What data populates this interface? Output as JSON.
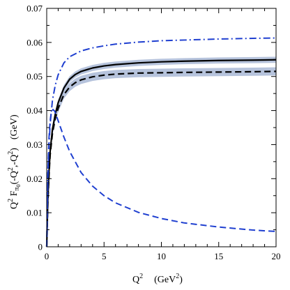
{
  "chart_data": {
    "type": "line",
    "xlim": [
      0,
      20
    ],
    "ylim": [
      0,
      0.07
    ],
    "x_ticks": [
      "0",
      "5",
      "10",
      "15",
      "20"
    ],
    "y_ticks": [
      "0",
      "0.01",
      "0.02",
      "0.03",
      "0.04",
      "0.05",
      "0.06",
      "0.07"
    ],
    "xlabel": {
      "base": "Q",
      "sup": "2",
      "unit_open": "(GeV",
      "unit_sup": "2",
      "unit_close": ")"
    },
    "ylabel": {
      "q": "Q",
      "q_sup": "2",
      "f": " F",
      "f_sub": "π",
      "f_sub2": "0",
      "args_a": "(-Q",
      "args_sup1": "2",
      "args_b": ",-Q",
      "args_sup2": "2",
      "args_c": ")",
      "unit": "(GeV)"
    },
    "grid": false,
    "legend": "none",
    "series": [
      {
        "style": "solid",
        "color": "#000000",
        "band": true,
        "band_color": "#a9b8d6",
        "x": [
          0,
          0.1,
          0.2,
          0.3,
          0.5,
          0.75,
          1,
          1.5,
          2,
          2.5,
          3,
          4,
          5,
          6,
          8,
          10,
          12,
          15,
          18,
          20
        ],
        "y": [
          0,
          0.014,
          0.022,
          0.028,
          0.0345,
          0.039,
          0.0423,
          0.0466,
          0.0492,
          0.0506,
          0.0515,
          0.0525,
          0.0531,
          0.0535,
          0.054,
          0.0543,
          0.0545,
          0.0547,
          0.0548,
          0.0549
        ],
        "band_halfwidth": 0.0009
      },
      {
        "style": "dashed",
        "color": "#000000",
        "band": true,
        "band_color": "#a9b8d6",
        "x": [
          0,
          0.1,
          0.2,
          0.3,
          0.5,
          0.75,
          1,
          1.5,
          2,
          2.5,
          3,
          4,
          5,
          6,
          8,
          10,
          12,
          15,
          18,
          20
        ],
        "y": [
          0,
          0.013,
          0.021,
          0.027,
          0.0333,
          0.0377,
          0.0407,
          0.0447,
          0.0469,
          0.0482,
          0.049,
          0.0499,
          0.0504,
          0.0507,
          0.051,
          0.0511,
          0.0512,
          0.0513,
          0.0514,
          0.0515
        ],
        "band_halfwidth": 0.0012
      },
      {
        "style": "dashdot",
        "color": "#1f3fd0",
        "band": false,
        "x": [
          0,
          0.1,
          0.2,
          0.3,
          0.5,
          0.75,
          1,
          1.5,
          2,
          3,
          4,
          5,
          6,
          8,
          10,
          12,
          15,
          18,
          20
        ],
        "y": [
          0,
          0.02,
          0.03,
          0.036,
          0.043,
          0.0475,
          0.0505,
          0.054,
          0.0558,
          0.0575,
          0.0584,
          0.059,
          0.0595,
          0.0601,
          0.0605,
          0.0607,
          0.061,
          0.0612,
          0.0613
        ]
      },
      {
        "style": "dashed",
        "color": "#1f3fd0",
        "band": false,
        "x": [
          0,
          0.1,
          0.2,
          0.3,
          0.4,
          0.55,
          0.7,
          1,
          1.5,
          2,
          3,
          4,
          5,
          6,
          8,
          10,
          12,
          15,
          18,
          20
        ],
        "y": [
          0,
          0.022,
          0.032,
          0.037,
          0.0395,
          0.0403,
          0.0398,
          0.037,
          0.0322,
          0.028,
          0.0218,
          0.0178,
          0.015,
          0.0129,
          0.0101,
          0.0083,
          0.007,
          0.0058,
          0.0049,
          0.0045
        ]
      }
    ]
  }
}
